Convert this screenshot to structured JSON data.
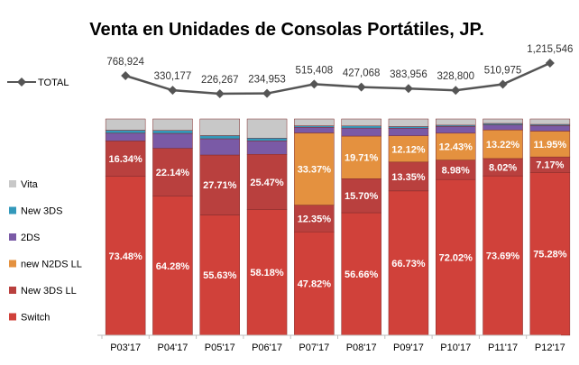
{
  "chart_data": {
    "type": "bar",
    "stacked": "percent",
    "title": "Venta en Unidades de Consolas Portátiles, JP.",
    "categories": [
      "P03'17",
      "P04'17",
      "P05'17",
      "P06'17",
      "P07'17",
      "P08'17",
      "P09'17",
      "P10'17",
      "P11'17",
      "P12'17"
    ],
    "series": [
      {
        "name": "Switch",
        "color": "#d0413a",
        "values": [
          73.48,
          64.28,
          55.63,
          58.18,
          47.82,
          56.66,
          66.73,
          72.02,
          73.69,
          75.28
        ],
        "labels": [
          "73.48%",
          "64.28%",
          "55.63%",
          "58.18%",
          "47.82%",
          "56.66%",
          "66.73%",
          "72.02%",
          "73.69%",
          "75.28%"
        ]
      },
      {
        "name": "New 3DS LL",
        "color": "#b9403e",
        "values": [
          16.34,
          22.14,
          27.71,
          25.47,
          12.35,
          15.7,
          13.35,
          8.98,
          8.02,
          7.17
        ],
        "labels": [
          "16.34%",
          "22.14%",
          "27.71%",
          "25.47%",
          "12.35%",
          "15.70%",
          "13.35%",
          "8.98%",
          "8.02%",
          "7.17%"
        ]
      },
      {
        "name": "new N2DS LL",
        "color": "#e4913f",
        "values": [
          0,
          0,
          0,
          0,
          33.37,
          19.71,
          12.12,
          12.43,
          13.22,
          11.95
        ],
        "labels": [
          "",
          "",
          "",
          "",
          "33.37%",
          "19.71%",
          "12.12%",
          "12.43%",
          "13.22%",
          "11.95%"
        ]
      },
      {
        "name": "2DS",
        "color": "#7a5aa6",
        "values": [
          3.6,
          6.9,
          7.5,
          6.2,
          2.6,
          3.7,
          3.5,
          3.1,
          2.3,
          2.5
        ],
        "labels": [
          "",
          "",
          "",
          "",
          "",
          "",
          "",
          "",
          "",
          ""
        ]
      },
      {
        "name": "New 3DS",
        "color": "#3399bb",
        "values": [
          1.4,
          1.4,
          1.5,
          1.3,
          0.7,
          1.0,
          0.8,
          0.6,
          0.7,
          0.6
        ],
        "labels": [
          "",
          "",
          "",
          "",
          "",
          "",
          "",
          "",
          "",
          ""
        ]
      },
      {
        "name": "Vita",
        "color": "#c8c8c8",
        "values": [
          5.18,
          5.28,
          7.66,
          8.85,
          3.16,
          3.23,
          3.5,
          2.87,
          2.07,
          2.5
        ],
        "labels": [
          "",
          "",
          "",
          "",
          "",
          "",
          "",
          "",
          "",
          ""
        ]
      }
    ],
    "line_series": {
      "name": "TOTAL",
      "color": "#555555",
      "values": [
        768924,
        330177,
        226267,
        234953,
        515408,
        427068,
        383956,
        328800,
        510975,
        1215546
      ],
      "labels": [
        "768,924",
        "330,177",
        "226,267",
        "234,953",
        "515,408",
        "427,068",
        "383,956",
        "328,800",
        "510,975",
        "1,215,546"
      ]
    },
    "legend": {
      "position": "left"
    },
    "ylim": [
      0,
      100
    ],
    "grid": false
  }
}
